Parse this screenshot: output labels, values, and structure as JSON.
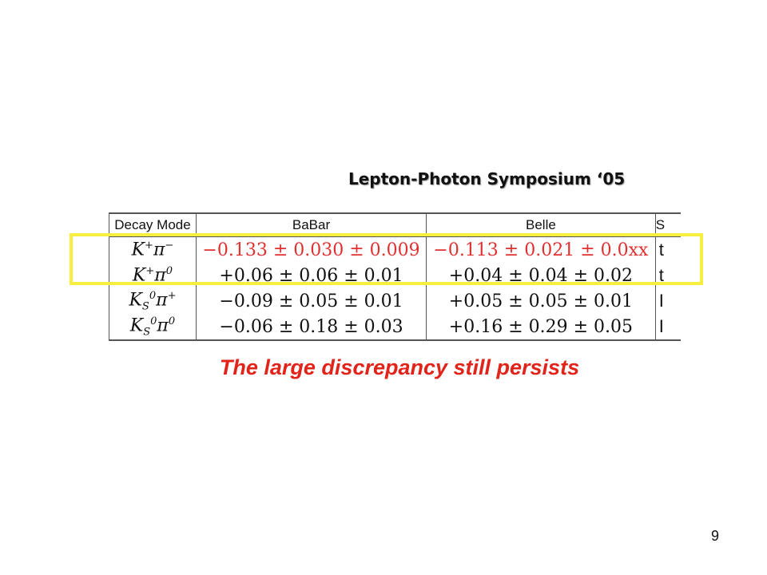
{
  "heading": "Lepton-Photon Symposium ‘05",
  "table": {
    "headers": [
      "Decay Mode",
      "BaBar",
      "Belle",
      "S"
    ],
    "rows": [
      {
        "mode_base": "K",
        "mode_sub": "",
        "mode_sup": "+",
        "mode_rest": "π",
        "mode_rest_sup": "−",
        "babar": "−0.133 ± 0.030 ± 0.009",
        "belle": "−0.113 ± 0.021 ± 0.0xx",
        "extra": "t",
        "highlight": true
      },
      {
        "mode_base": "K",
        "mode_sub": "",
        "mode_sup": "+",
        "mode_rest": "π",
        "mode_rest_sup": "0",
        "babar": "+0.06 ± 0.06 ± 0.01",
        "belle": "+0.04 ± 0.04 ± 0.02",
        "extra": "t",
        "highlight": true
      },
      {
        "mode_base": "K",
        "mode_sub": "S",
        "mode_sup": "0",
        "mode_rest": "π",
        "mode_rest_sup": "+",
        "babar": "−0.09 ± 0.05 ± 0.01",
        "belle": "+0.05 ± 0.05 ± 0.01",
        "extra": "I",
        "highlight": false
      },
      {
        "mode_base": "K",
        "mode_sub": "S",
        "mode_sup": "0",
        "mode_rest": "π",
        "mode_rest_sup": "0",
        "babar": "−0.06 ± 0.18 ± 0.03",
        "belle": "+0.16 ± 0.29 ± 0.05",
        "extra": "I",
        "highlight": false
      }
    ]
  },
  "caption": "The large discrepancy still persists",
  "page_number": "9",
  "colors": {
    "highlight_box": "#f7ef3f",
    "emphasis_red": "#e03030",
    "caption_red": "#e2231a"
  }
}
